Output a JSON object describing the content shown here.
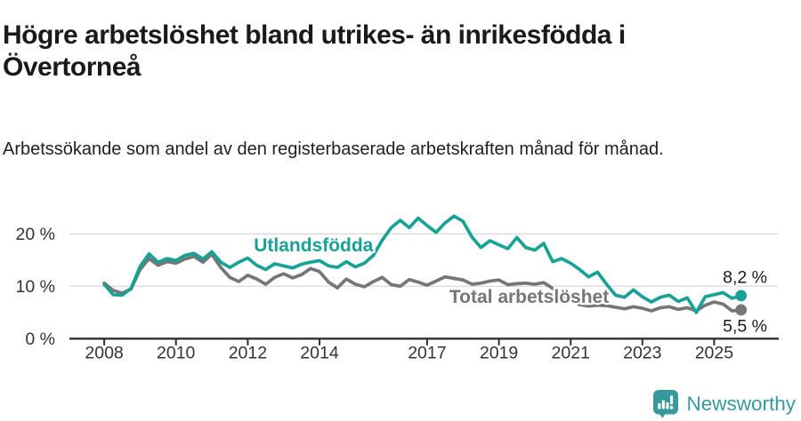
{
  "header": {
    "title": "Högre arbetslöshet bland utrikes- än inrikesfödda i Övertorneå",
    "subtitle": "Arbetssökande som andel av den registerbaserade arbetskraften månad för månad."
  },
  "chart_data": {
    "type": "line",
    "title": "Högre arbetslöshet bland utrikes- än inrikesfödda i Övertorneå",
    "xlabel": "",
    "ylabel": "Arbetssökande som andel av den registerbaserade arbetskraften",
    "unit": "%",
    "grid": "horizontal",
    "xlim": [
      2007.03,
      2026.8
    ],
    "ylim": [
      0,
      26.5
    ],
    "yticks": [
      {
        "value": 0,
        "label": "0 %"
      },
      {
        "value": 10,
        "label": "10 %"
      },
      {
        "value": 20,
        "label": "20 %"
      }
    ],
    "xticks": [
      {
        "value": 2008,
        "label": "2008"
      },
      {
        "value": 2010,
        "label": "2010"
      },
      {
        "value": 2012,
        "label": "2012"
      },
      {
        "value": 2014,
        "label": "2014"
      },
      {
        "value": 2017,
        "label": "2017"
      },
      {
        "value": 2019,
        "label": "2019"
      },
      {
        "value": 2021,
        "label": "2021"
      },
      {
        "value": 2023,
        "label": "2023"
      },
      {
        "value": 2025,
        "label": "2025"
      }
    ],
    "x": [
      2008,
      2008.25,
      2008.5,
      2008.75,
      2009,
      2009.25,
      2009.5,
      2009.75,
      2010,
      2010.25,
      2010.5,
      2010.75,
      2011,
      2011.25,
      2011.5,
      2011.75,
      2012,
      2012.25,
      2012.5,
      2012.75,
      2013,
      2013.25,
      2013.5,
      2013.75,
      2014,
      2014.25,
      2014.5,
      2014.75,
      2015,
      2015.25,
      2015.5,
      2015.75,
      2016,
      2016.25,
      2016.5,
      2016.75,
      2017,
      2017.25,
      2017.5,
      2017.75,
      2018,
      2018.25,
      2018.5,
      2018.75,
      2019,
      2019.25,
      2019.5,
      2019.75,
      2020,
      2020.25,
      2020.5,
      2020.75,
      2021,
      2021.25,
      2021.5,
      2021.75,
      2022,
      2022.25,
      2022.5,
      2022.75,
      2023,
      2023.25,
      2023.5,
      2023.75,
      2024,
      2024.25,
      2024.5,
      2024.75,
      2025,
      2025.25,
      2025.5,
      2025.75
    ],
    "series": [
      {
        "name": "Total arbetslöshet",
        "color": "#767676",
        "end_value": 5.5,
        "end_label": "5,5 %",
        "end_label_position": "below",
        "label_at": {
          "t": 2017.62,
          "v": 6.8
        },
        "values": [
          10.6,
          9.2,
          8.7,
          9.5,
          13.2,
          15.3,
          14.0,
          14.7,
          14.4,
          15.2,
          15.7,
          14.6,
          16.1,
          13.6,
          11.7,
          10.9,
          12.1,
          11.4,
          10.4,
          11.7,
          12.4,
          11.6,
          12.2,
          13.4,
          12.8,
          10.8,
          9.7,
          11.4,
          10.4,
          9.9,
          10.9,
          11.7,
          10.3,
          10.0,
          11.3,
          10.8,
          10.2,
          11.0,
          11.8,
          11.5,
          11.2,
          10.4,
          10.6,
          11.0,
          11.2,
          10.3,
          10.5,
          10.6,
          10.4,
          10.7,
          9.6,
          8.4,
          7.4,
          6.5,
          6.2,
          6.4,
          6.3,
          6.0,
          5.7,
          6.1,
          5.8,
          5.3,
          5.9,
          6.1,
          5.6,
          5.9,
          5.3,
          6.4,
          7.0,
          6.6,
          5.3,
          5.5
        ]
      },
      {
        "name": "Utlandsfödda",
        "color": "#18a295",
        "end_value": 8.2,
        "end_label": "8,2 %",
        "end_label_position": "above",
        "label_at": {
          "t": 2012.17,
          "v": 16.7
        },
        "values": [
          10.4,
          8.4,
          8.3,
          9.6,
          13.8,
          16.2,
          14.6,
          15.3,
          14.9,
          15.9,
          16.3,
          15.2,
          16.6,
          14.6,
          13.6,
          14.6,
          15.4,
          14.0,
          13.2,
          14.3,
          13.9,
          13.5,
          14.2,
          14.6,
          14.9,
          13.9,
          13.6,
          14.7,
          13.7,
          14.4,
          15.9,
          18.8,
          21.2,
          22.6,
          21.2,
          23.0,
          21.6,
          20.3,
          22.1,
          23.4,
          22.4,
          19.4,
          17.4,
          18.7,
          17.9,
          17.2,
          19.3,
          17.4,
          16.9,
          18.2,
          14.7,
          15.3,
          14.4,
          13.2,
          11.8,
          12.7,
          10.4,
          8.3,
          7.9,
          9.3,
          8.0,
          7.0,
          7.9,
          8.3,
          7.1,
          7.8,
          5.0,
          8.0,
          8.4,
          8.8,
          7.7,
          8.2
        ]
      }
    ],
    "colors": {
      "axis": "#2f2f2f",
      "tick_label": "#333333",
      "gridline": "#dbdbdb",
      "value_label": "#1a1a1a"
    }
  },
  "footer": {
    "brand": "Newsworthy",
    "brand_color": "#38999c"
  }
}
